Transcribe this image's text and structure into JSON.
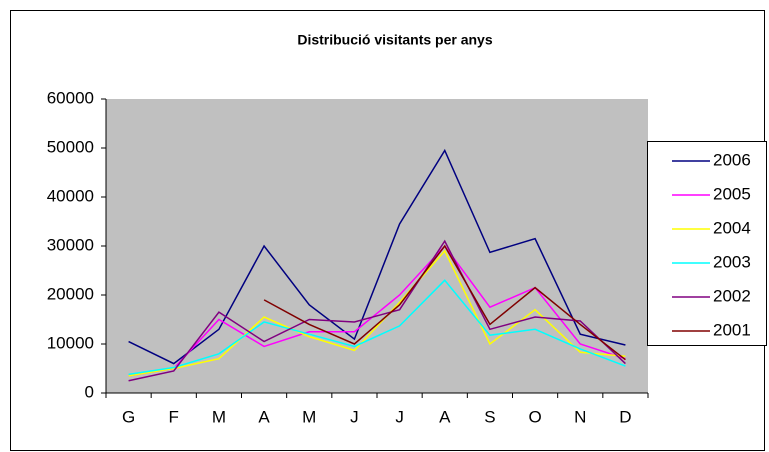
{
  "chart_data": {
    "type": "line",
    "title": "Distribució visitants per anys",
    "categories": [
      "G",
      "F",
      "M",
      "A",
      "M",
      "J",
      "J",
      "A",
      "S",
      "O",
      "N",
      "D"
    ],
    "series": [
      {
        "name": "2006",
        "color": "#000080",
        "values": [
          10500,
          6000,
          13000,
          30000,
          18000,
          11000,
          34500,
          49500,
          28700,
          31500,
          12000,
          9800
        ]
      },
      {
        "name": "2005",
        "color": "#ff00ff",
        "values": [
          3500,
          5000,
          15000,
          9500,
          12500,
          12500,
          20000,
          30000,
          17500,
          21500,
          10000,
          7000
        ]
      },
      {
        "name": "2004",
        "color": "#ffff00",
        "values": [
          3500,
          5000,
          7000,
          15500,
          11500,
          8700,
          18500,
          29000,
          10000,
          17000,
          8300,
          7500
        ]
      },
      {
        "name": "2003",
        "color": "#00ffff",
        "values": [
          3800,
          5200,
          8000,
          14500,
          12000,
          9500,
          13700,
          23000,
          11800,
          13000,
          9000,
          5500
        ]
      },
      {
        "name": "2002",
        "color": "#800080",
        "values": [
          2500,
          4500,
          16500,
          10500,
          15000,
          14500,
          17000,
          31000,
          13000,
          15500,
          14700,
          6000
        ]
      },
      {
        "name": "2001",
        "color": "#800000",
        "values": [
          null,
          null,
          null,
          19000,
          14000,
          10000,
          18000,
          30000,
          14000,
          21500,
          14000,
          6800
        ]
      }
    ],
    "ylim": [
      0,
      60000
    ],
    "yticks": [
      0,
      10000,
      20000,
      30000,
      40000,
      50000,
      60000
    ],
    "grid": false,
    "legend": "right"
  }
}
